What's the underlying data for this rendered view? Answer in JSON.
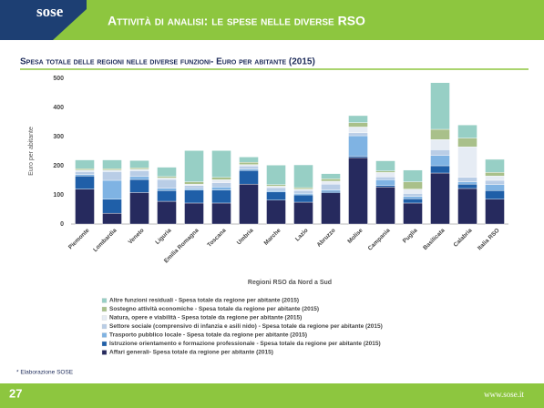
{
  "header": {
    "logo": "sose",
    "title": "Attività di analisi: le spese nelle diverse RSO"
  },
  "chart_data": {
    "type": "stacked_bar",
    "title": "Spesa totale delle regioni nelle diverse funzioni- Euro per abitante (2015)",
    "x_label": "Regioni RSO da Nord a Sud",
    "y_label": "Euro per abitante",
    "categories": [
      "Piemonte",
      "Lombardia",
      "Veneto",
      "Liguria",
      "Emilia Romagna",
      "Toscana",
      "Umbria",
      "Marche",
      "Lazio",
      "Abruzzo",
      "Molise",
      "Campania",
      "Puglia",
      "Basilicata",
      "Calabria",
      "Italia RSO"
    ],
    "ylim": [
      0,
      500
    ],
    "yticks": [
      0,
      100,
      200,
      300,
      400,
      500
    ],
    "grid": false,
    "series": [
      {
        "name": "Affari generali- Spesa totale da regione per abitante (2015)",
        "color": "#262a5e",
        "values": [
          120,
          37,
          108,
          78,
          72,
          72,
          137,
          82,
          75,
          107,
          228,
          127,
          72,
          175,
          122,
          85
        ]
      },
      {
        "name": "Istruzione orientamento e formazione professionale - Spesa totale da regione per abitante (2015)",
        "color": "#1f5fa8",
        "values": [
          45,
          48,
          45,
          37,
          45,
          45,
          47,
          28,
          25,
          5,
          5,
          5,
          15,
          25,
          15,
          30
        ]
      },
      {
        "name": "Trasporto pubblico locale - Spesa totale da regione per abitante (2015)",
        "color": "#7fb3e3",
        "values": [
          5,
          65,
          10,
          8,
          5,
          10,
          5,
          5,
          5,
          5,
          70,
          20,
          8,
          35,
          8,
          20
        ]
      },
      {
        "name": "Settore sociale (comprensivo di infanzia e asili nido) - Spesa totale da regione per abitante (2015)",
        "color": "#b9cde6",
        "values": [
          10,
          30,
          20,
          30,
          10,
          15,
          10,
          10,
          10,
          20,
          10,
          10,
          10,
          20,
          15,
          15
        ]
      },
      {
        "name": "Natura, opere e viabilità - Spesa totale da regione per abitante (2015)",
        "color": "#e6ecf4",
        "values": [
          5,
          5,
          5,
          5,
          5,
          10,
          5,
          5,
          5,
          10,
          20,
          15,
          15,
          35,
          105,
          15
        ]
      },
      {
        "name": "Sostegno attività economiche - Spesa totale da regione per abitante (2015)",
        "color": "#a9c08a",
        "values": [
          5,
          5,
          5,
          5,
          8,
          8,
          8,
          5,
          5,
          8,
          15,
          5,
          25,
          35,
          30,
          12
        ]
      },
      {
        "name": "Altre funzioni residuali - Spesa totale da regione per abitante (2015)",
        "color": "#97cfc5",
        "values": [
          30,
          30,
          25,
          32,
          107,
          92,
          18,
          67,
          78,
          18,
          24,
          35,
          40,
          160,
          45,
          45
        ]
      }
    ]
  },
  "footnote": "* Elaborazione SOSE",
  "page_number": "27",
  "website": "www.sose.it"
}
